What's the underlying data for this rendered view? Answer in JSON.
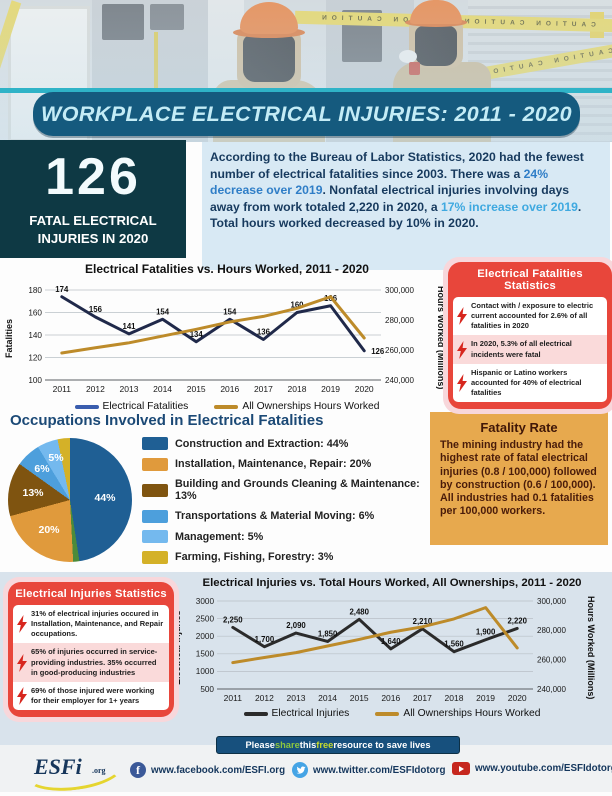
{
  "photo": {
    "caution_text": "CAUTION CAUTION CAUTION CAUTION"
  },
  "banner": {
    "title": "WORKPLACE ELECTRICAL INJURIES: 2011 - 2020"
  },
  "summary": {
    "big_number": "126",
    "big_label_line1": "FATAL ELECTRICAL",
    "big_label_line2": "INJURIES IN 2020",
    "paragraph": [
      {
        "t": "According to the Bureau of Labor Statistics, 2020 had the fewest number of electrical fatalities since 2003. There was a "
      },
      {
        "t": "24% decrease over 2019",
        "c": "hl1"
      },
      {
        "t": ". Nonfatal electrical injuries involving days away from work totaled 2,220 in 2020, a "
      },
      {
        "t": "17% increase over 2019",
        "c": "hl2"
      },
      {
        "t": ". Total hours worked decreased by 10% in 2020."
      }
    ]
  },
  "fatal_stats_box": {
    "title": "Electrical Fatalities Statistics",
    "items": [
      "Contact with / exposure to electric current accounted for 2.6% of all fatalities in 2020",
      "In 2020, 5.3% of all electrical incidents were fatal",
      "Hispanic or Latino workers accounted for 40% of electrical fatalities"
    ]
  },
  "fatality_rate_box": {
    "title": "Fatality Rate",
    "segments": [
      {
        "t": "The mining industry had the "
      },
      {
        "t": "highest rate",
        "c": "b"
      },
      {
        "t": " of fatal electrical injuries "
      },
      {
        "t": "(0.8 / 100,000)",
        "c": "b"
      },
      {
        "t": " followed by "
      },
      {
        "t": "construction (0.6 / 100,000)",
        "c": "b"
      },
      {
        "t": ". All industries had 0.1 fatalities per 100,000 workers."
      }
    ]
  },
  "injury_stats_box": {
    "title": "Electrical Injuries Statistics",
    "items": [
      "31% of electrical injuries occured in Installation, Maintenance, and Repair occupations.",
      "65% of injuries occurred in service-providing industries. 35% occurred in good-producing industries",
      "69% of those injured were working for their employer for 1+ years"
    ]
  },
  "footer": {
    "pill_segments": [
      {
        "t": "Please "
      },
      {
        "t": "share",
        "c": "share"
      },
      {
        "t": " this "
      },
      {
        "t": "free",
        "c": "free"
      },
      {
        "t": " resource to save lives"
      }
    ],
    "logo_text": "ESFi",
    "logo_suffix": ".org",
    "facebook": "www.facebook.com/ESFI.org",
    "twitter": "www.twitter.com/ESFIdotorg",
    "youtube": "www.youtube.com/ESFIdotorg"
  },
  "chart_data": [
    {
      "type": "line",
      "title": "Electrical Fatalities vs. Hours Worked, 2011 - 2020",
      "x_labels": [
        "2011",
        "2012",
        "2013",
        "2014",
        "2015",
        "2016",
        "2017",
        "2018",
        "2019",
        "2020"
      ],
      "series": [
        {
          "name": "Electrical Fatalities",
          "axis": "left",
          "color": "#20294a",
          "legend_color": "#3a5dae",
          "values": [
            174,
            156,
            141,
            154,
            134,
            154,
            136,
            160,
            166,
            126
          ],
          "point_labels": [
            "174",
            "156",
            "141",
            "154",
            "134",
            "154",
            "136",
            "160",
            "166",
            "126"
          ]
        },
        {
          "name": "All Ownerships Hours Worked",
          "axis": "right",
          "color": "#bd8b2a",
          "values": [
            258000,
            261500,
            264800,
            269300,
            273800,
            278700,
            282400,
            287800,
            295500,
            268000
          ]
        }
      ],
      "left_axis": {
        "title": "Fatalities",
        "min": 100,
        "max": 180,
        "tick_values": [
          180,
          160,
          140,
          120,
          100
        ],
        "tick_labels": [
          "180",
          "160",
          "140",
          "120",
          "100"
        ]
      },
      "right_axis": {
        "title": "Hours Worked (Millions)",
        "min": 240000,
        "max": 300000,
        "tick_values": [
          300000,
          280000,
          260000,
          240000
        ],
        "tick_labels": [
          "300,000",
          "280,000",
          "260,000",
          "240,000"
        ]
      },
      "grid": true,
      "legend_position": "bottom"
    },
    {
      "type": "line",
      "title": "Electrical Injuries vs. Total Hours Worked, All Ownerships,  2011 - 2020",
      "x_labels": [
        "2011",
        "2012",
        "2013",
        "2014",
        "2015",
        "2016",
        "2017",
        "2018",
        "2019",
        "2020"
      ],
      "series": [
        {
          "name": "Electrical Injuries",
          "axis": "left",
          "color": "#2b2b2b",
          "legend_color": "#2b2b2b",
          "values": [
            2250,
            1700,
            2090,
            1850,
            2480,
            1640,
            2210,
            1560,
            1900,
            2220
          ],
          "point_labels": [
            "2,250",
            "1,700",
            "2,090",
            "1,850",
            "2,480",
            "1,640",
            "2,210",
            "1,560",
            "1,900",
            "2,220"
          ]
        },
        {
          "name": "All Ownerships Hours Worked",
          "axis": "right",
          "color": "#bd8b2a",
          "values": [
            258000,
            261500,
            264800,
            269300,
            273800,
            278700,
            282400,
            287800,
            295500,
            268000
          ]
        }
      ],
      "left_axis": {
        "title": "Electrical Injuries",
        "min": 500,
        "max": 3000,
        "tick_values": [
          3000,
          2500,
          2000,
          1500,
          1000,
          500
        ],
        "tick_labels": [
          "3000",
          "2500",
          "2000",
          "1500",
          "1000",
          "500"
        ]
      },
      "right_axis": {
        "title": "Hours Worked (Millions)",
        "min": 240000,
        "max": 300000,
        "tick_values": [
          300000,
          280000,
          260000,
          240000
        ],
        "tick_labels": [
          "300,000",
          "280,000",
          "260,000",
          "240,000"
        ]
      },
      "grid": true,
      "legend_position": "bottom"
    },
    {
      "type": "pie",
      "title": "Occupations Involved in Electrical Fatalities",
      "slices": [
        {
          "label": "Construction and Extraction: 44%",
          "value": 44,
          "color": "#1f5f94",
          "pie_label": "44%"
        },
        {
          "label": "",
          "value": 1.5,
          "color": "#4c8b3a",
          "pie_label": ""
        },
        {
          "label": "Installation, Maintenance, Repair: 20%",
          "value": 20,
          "color": "#e09a3c",
          "pie_label": "20%"
        },
        {
          "label": "Building and Grounds Cleaning & Maintenance: 13%",
          "value": 13,
          "color": "#7f5410",
          "pie_label": "13%"
        },
        {
          "label": "Transportations & Material Moving: 6%",
          "value": 6,
          "color": "#4d9fdc",
          "pie_label": "6%"
        },
        {
          "label": "Management: 5%",
          "value": 5,
          "color": "#74b9ee",
          "pie_label": "5%"
        },
        {
          "label": "Farming, Fishing, Forestry: 3%",
          "value": 3,
          "color": "#d4b128",
          "pie_label": ""
        }
      ],
      "legend": [
        {
          "label": "Construction and Extraction: 44%",
          "color": "#1f5f94"
        },
        {
          "label": "Installation, Maintenance, Repair: 20%",
          "color": "#e09a3c"
        },
        {
          "label": "Building and Grounds Cleaning & Maintenance: 13%",
          "color": "#7f5410"
        },
        {
          "label": "Transportations & Material Moving: 6%",
          "color": "#4d9fdc"
        },
        {
          "label": "Management: 5%",
          "color": "#74b9ee"
        },
        {
          "label": "Farming, Fishing, Forestry: 3%",
          "color": "#d4b128"
        }
      ]
    }
  ],
  "colors": {
    "banner_bg": "#155a7e",
    "accent_teal": "#2fb3c7",
    "red_box": "#e8463b",
    "orange_box": "#e7a94e",
    "gold_line": "#bd8b2a",
    "navy_line": "#20294a"
  }
}
